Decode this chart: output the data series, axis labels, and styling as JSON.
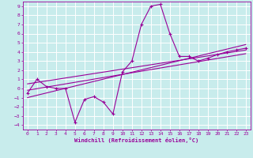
{
  "title": "",
  "xlabel": "Windchill (Refroidissement éolien,°C)",
  "ylabel": "",
  "background_color": "#c8ecec",
  "grid_color": "#aadddd",
  "line_color": "#990099",
  "xlim": [
    -0.5,
    23.5
  ],
  "ylim": [
    -4.5,
    9.5
  ],
  "xticks": [
    0,
    1,
    2,
    3,
    4,
    5,
    6,
    7,
    8,
    9,
    10,
    11,
    12,
    13,
    14,
    15,
    16,
    17,
    18,
    19,
    20,
    21,
    22,
    23
  ],
  "yticks": [
    -4,
    -3,
    -2,
    -1,
    0,
    1,
    2,
    3,
    4,
    5,
    6,
    7,
    8,
    9
  ],
  "data_x": [
    0,
    1,
    2,
    3,
    4,
    5,
    6,
    7,
    8,
    9,
    10,
    11,
    12,
    13,
    14,
    15,
    16,
    17,
    18,
    19,
    20,
    21,
    22,
    23
  ],
  "data_y": [
    -0.5,
    1.0,
    0.2,
    0.0,
    0.0,
    -3.7,
    -1.2,
    -0.9,
    -1.5,
    -2.8,
    1.8,
    3.0,
    7.0,
    9.0,
    9.2,
    6.0,
    3.5,
    3.5,
    3.0,
    3.3,
    3.7,
    4.0,
    4.2,
    4.4
  ],
  "line1_x": [
    0,
    23
  ],
  "line1_y": [
    -1.0,
    4.8
  ],
  "line2_x": [
    0,
    23
  ],
  "line2_y": [
    -0.2,
    3.8
  ],
  "line3_x": [
    0,
    23
  ],
  "line3_y": [
    0.5,
    4.2
  ]
}
